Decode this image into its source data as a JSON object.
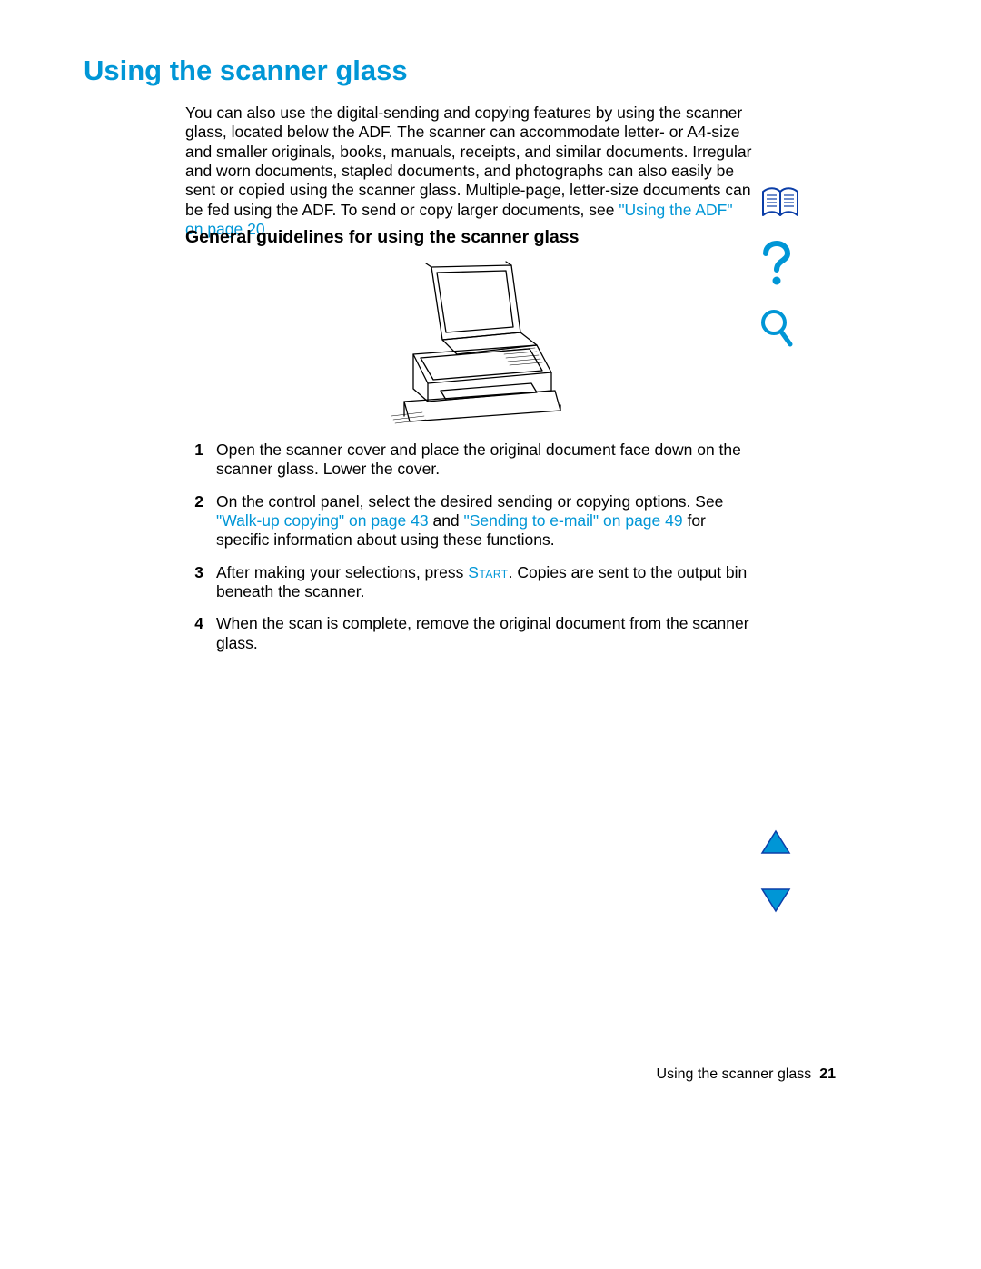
{
  "colors": {
    "accent": "#0096d6",
    "text": "#000000",
    "bg": "#ffffff"
  },
  "title": "Using the scanner glass",
  "intro": {
    "text_before_link": "You can also use the digital-sending and copying features by using the scanner glass, located below the ADF. The scanner can accommodate letter- or A4-size and smaller originals, books, manuals, receipts, and similar documents. Irregular and worn documents, stapled documents, and photographs can also easily be sent or copied using the scanner glass. Multiple-page, letter-size documents can be fed using the ADF. To send or copy larger documents, see ",
    "link": "\"Using the ADF\" on page 20",
    "text_after_link": "."
  },
  "subheading": "General guidelines for using the scanner glass",
  "steps": [
    {
      "n": "1",
      "parts": [
        {
          "t": "text",
          "v": "Open the scanner cover and place the original document face down on the scanner glass. Lower the cover."
        }
      ]
    },
    {
      "n": "2",
      "parts": [
        {
          "t": "text",
          "v": "On the control panel, select the desired sending or copying options. See "
        },
        {
          "t": "link",
          "v": "\"Walk-up copying\" on page 43"
        },
        {
          "t": "text",
          "v": " and "
        },
        {
          "t": "link",
          "v": "\"Sending to e-mail\" on page 49"
        },
        {
          "t": "text",
          "v": " for specific information about using these functions."
        }
      ]
    },
    {
      "n": "3",
      "parts": [
        {
          "t": "text",
          "v": "After making your selections, press "
        },
        {
          "t": "sc",
          "v": "Start"
        },
        {
          "t": "text",
          "v": ". Copies are sent to the output bin beneath the scanner."
        }
      ]
    },
    {
      "n": "4",
      "parts": [
        {
          "t": "text",
          "v": "When the scan is complete, remove the original document from the scanner glass."
        }
      ]
    }
  ],
  "sidebar_icons": [
    {
      "name": "book-icon"
    },
    {
      "name": "help-icon"
    },
    {
      "name": "search-icon"
    }
  ],
  "nav": {
    "up": "page-up",
    "down": "page-down"
  },
  "footer": {
    "label": "Using the scanner glass",
    "page": "21"
  }
}
